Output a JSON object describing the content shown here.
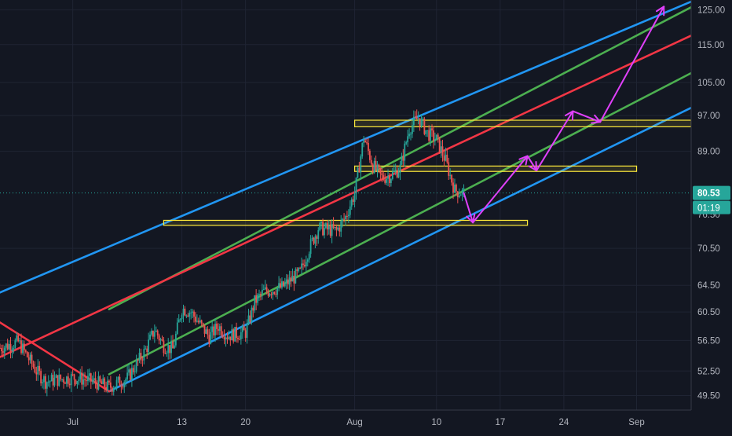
{
  "colors": {
    "background": "#131722",
    "grid": "#1f2433",
    "axis_text": "#b2b5be",
    "axis_line": "#363a45",
    "candle_up": "#26a69a",
    "candle_down": "#ef5350",
    "channel_outer": "#2196f3",
    "channel_inner": "#4caf50",
    "channel_median": "#f23645",
    "zone_stroke": "#ffeb3b",
    "projection": "#e040fb",
    "price_badge": "#26a69a",
    "price_line": "#26a69a"
  },
  "chart_data": {
    "type": "candlestick",
    "x_axis": {
      "unit": "day",
      "range": [
        "Jun 23",
        "Sep 7"
      ],
      "ticks": [
        {
          "date": "Jul 1",
          "label": "Jul"
        },
        {
          "date": "Jul 13",
          "label": "13"
        },
        {
          "date": "Jul 20",
          "label": "20"
        },
        {
          "date": "Aug 1",
          "label": "Aug"
        },
        {
          "date": "Aug 10",
          "label": "10"
        },
        {
          "date": "Aug 17",
          "label": "17"
        },
        {
          "date": "Aug 24",
          "label": "24"
        },
        {
          "date": "Sep 1",
          "label": "Sep"
        }
      ]
    },
    "y_axis": {
      "scale": "log",
      "range": [
        47.8,
        128.0
      ],
      "ticks": [
        {
          "value": 125.0,
          "label": "125.00"
        },
        {
          "value": 115.0,
          "label": "115.00"
        },
        {
          "value": 105.0,
          "label": "105.00"
        },
        {
          "value": 97.0,
          "label": "97.00"
        },
        {
          "value": 89.0,
          "label": "89.00"
        },
        {
          "value": 70.5,
          "label": "70.50"
        },
        {
          "value": 64.5,
          "label": "64.50"
        },
        {
          "value": 60.5,
          "label": "60.50"
        },
        {
          "value": 56.5,
          "label": "56.50"
        },
        {
          "value": 52.5,
          "label": "52.50"
        },
        {
          "value": 49.5,
          "label": "49.50"
        }
      ],
      "hidden_tick": {
        "value": 76.5,
        "label": "76.50"
      }
    },
    "current_price": {
      "value": 80.53,
      "label": "80.53",
      "countdown": "01:19"
    },
    "grid": true,
    "price_path": [
      [
        "Jun 23",
        55.5
      ],
      [
        "Jun 25",
        56.3
      ],
      [
        "Jun 27",
        52.5
      ],
      [
        "Jun 28",
        51.2
      ],
      [
        "Jul 1",
        51.7
      ],
      [
        "Jul 3",
        51.3
      ],
      [
        "Jul 5",
        50.5
      ],
      [
        "Jul 7",
        51.6
      ],
      [
        "Jul 9",
        55.2
      ],
      [
        "Jul 10",
        58.0
      ],
      [
        "Jul 11",
        55.8
      ],
      [
        "Jul 12",
        55.3
      ],
      [
        "Jul 13",
        61.0
      ],
      [
        "Jul 14",
        60.5
      ],
      [
        "Jul 16",
        57.0
      ],
      [
        "Jul 17",
        58.5
      ],
      [
        "Jul 18",
        57.2
      ],
      [
        "Jul 20",
        57.6
      ],
      [
        "Jul 21",
        62.0
      ],
      [
        "Jul 22",
        63.5
      ],
      [
        "Jul 24",
        64.2
      ],
      [
        "Jul 26",
        66.5
      ],
      [
        "Jul 27",
        70.5
      ],
      [
        "Jul 28",
        74.0
      ],
      [
        "Jul 30",
        73.5
      ],
      [
        "Jul 31",
        76.0
      ],
      [
        "Aug 1",
        80.5
      ],
      [
        "Aug 2",
        92.0
      ],
      [
        "Aug 3",
        86.0
      ],
      [
        "Aug 4",
        83.5
      ],
      [
        "Aug 5",
        84.0
      ],
      [
        "Aug 6",
        85.5
      ],
      [
        "Aug 7",
        94.0
      ],
      [
        "Aug 8",
        96.5
      ],
      [
        "Aug 9",
        93.0
      ],
      [
        "Aug 10",
        91.5
      ],
      [
        "Aug 11",
        87.0
      ],
      [
        "Aug 12",
        81.0
      ],
      [
        "Aug 13",
        80.53
      ]
    ],
    "channel": {
      "median": [
        [
          "Jun 23",
          54.3
        ],
        [
          "Sep 7",
          117.5
        ]
      ],
      "outer_upper": [
        [
          "Jun 23",
          63.4
        ],
        [
          "Sep 7",
          127.5
        ]
      ],
      "outer_lower": [
        [
          "Jul 5",
          50.0
        ],
        [
          "Sep 7",
          98.8
        ]
      ],
      "inner_upper": [
        [
          "Jul 5",
          60.9
        ],
        [
          "Sep 7",
          125.8
        ]
      ],
      "inner_lower": [
        [
          "Jul 5",
          52.1
        ],
        [
          "Sep 7",
          107.4
        ]
      ],
      "handle": [
        [
          "Jun 23",
          59.0
        ],
        [
          "Jul 5",
          50.0
        ]
      ]
    },
    "zones": [
      {
        "from": "Aug 1",
        "to": "Sep 7",
        "low": 94.4,
        "high": 95.9
      },
      {
        "from": "Aug 1",
        "to": "Sep 1",
        "low": 84.8,
        "high": 85.9
      },
      {
        "from": "Jul 11",
        "to": "Aug 20",
        "low": 74.5,
        "high": 75.4
      }
    ],
    "projection_path": [
      [
        "Aug 13",
        80.53
      ],
      [
        "Aug 14",
        75.0
      ],
      [
        "Aug 20",
        88.0
      ],
      [
        "Aug 21",
        85.0
      ],
      [
        "Aug 25",
        98.0
      ],
      [
        "Aug 28",
        95.5
      ],
      [
        "Sep 4",
        126.0
      ]
    ]
  }
}
